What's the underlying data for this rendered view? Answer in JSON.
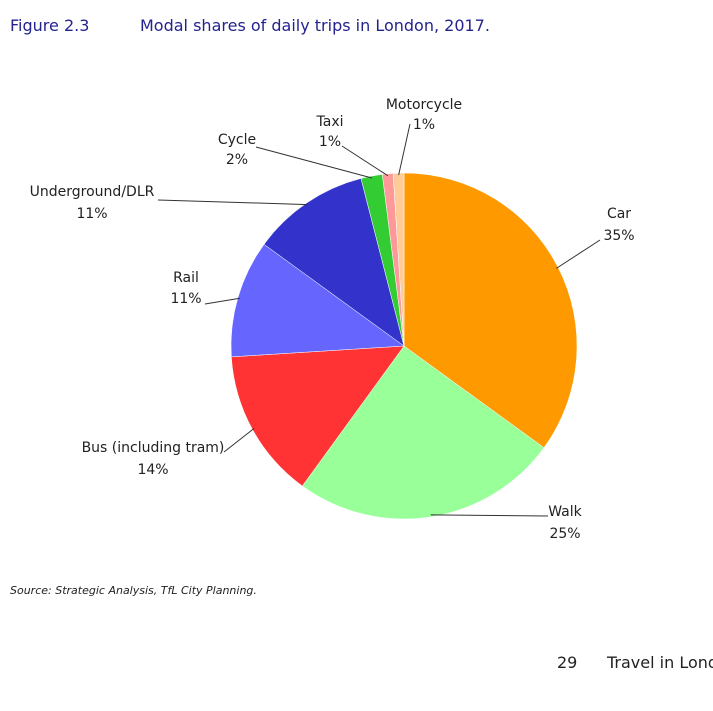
{
  "figure_label": "Figure 2.3",
  "chart_data": {
    "type": "pie",
    "title": "Modal shares of daily trips in London, 2017.",
    "categories": [
      "Car",
      "Walk",
      "Bus (including tram)",
      "Rail",
      "Underground/DLR",
      "Cycle",
      "Taxi",
      "Motorcycle"
    ],
    "values": [
      35,
      25,
      14,
      11,
      11,
      2,
      1,
      1
    ],
    "value_labels": [
      "35%",
      "25%",
      "14%",
      "11%",
      "11%",
      "2%",
      "1%",
      "1%"
    ],
    "colors": [
      "#ff9900",
      "#99ff99",
      "#ff3333",
      "#6666ff",
      "#3333cc",
      "#33cc33",
      "#ff9999",
      "#ffcc99"
    ]
  },
  "source": "Source: Strategic Analysis, TfL City Planning.",
  "footer": {
    "page_number": "29",
    "publication": "Travel in London"
  }
}
